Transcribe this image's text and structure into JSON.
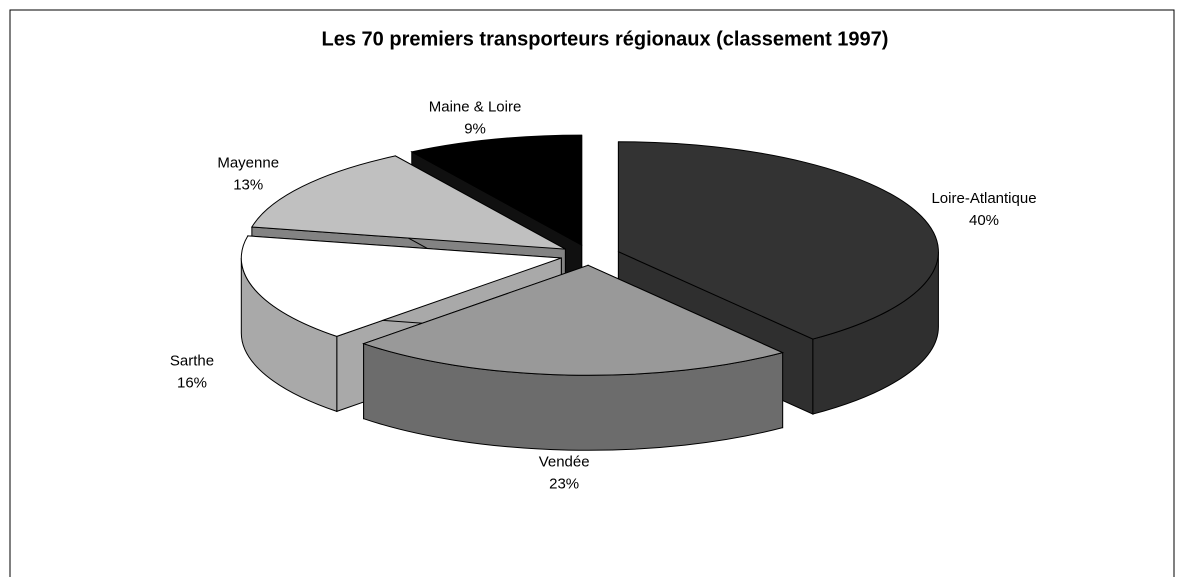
{
  "chart_data": {
    "type": "pie3d",
    "title": "Les 70 premiers transporteurs régionaux (classement 1997)",
    "categories": [
      "Loire-Atlantique",
      "Vendée",
      "Sarthe",
      "Mayenne",
      "Maine & Loire"
    ],
    "values": [
      40,
      23,
      16,
      13,
      9
    ],
    "value_labels": [
      "40%",
      "23%",
      "16%",
      "13%",
      "9%"
    ],
    "colors": [
      "#333333",
      "#999999",
      "#ffffff",
      "#c0c0c0",
      "#000000"
    ]
  }
}
